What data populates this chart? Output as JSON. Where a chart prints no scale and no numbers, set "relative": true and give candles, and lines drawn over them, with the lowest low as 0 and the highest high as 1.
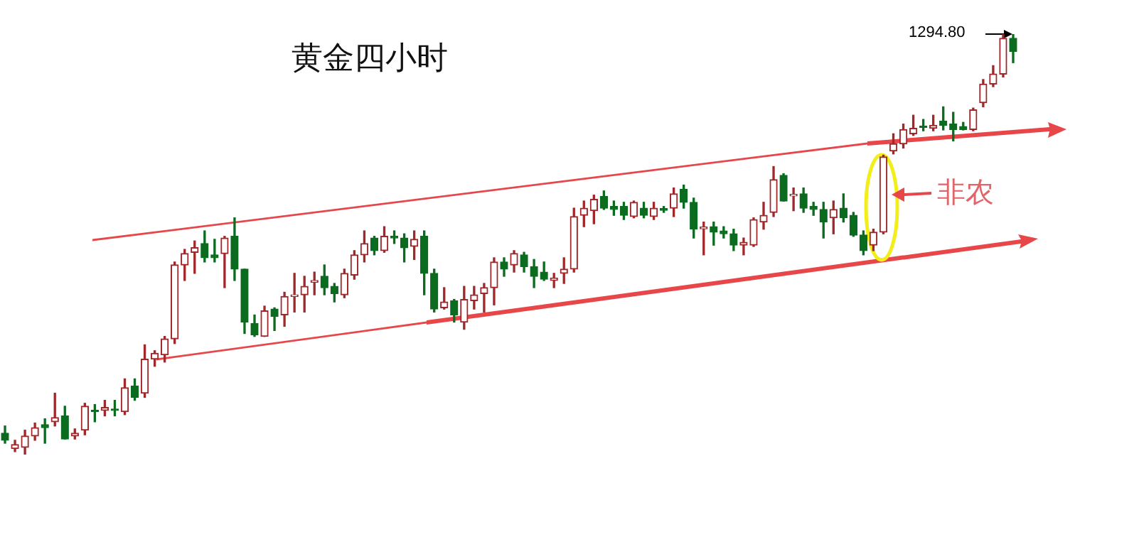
{
  "chart_data": {
    "type": "candlestick",
    "title": "黄金四小时",
    "relative": true,
    "categories": [
      null,
      null,
      null,
      null,
      null,
      null,
      null,
      null,
      null,
      null,
      null,
      null,
      null,
      null,
      null,
      null,
      null,
      null,
      null,
      null,
      null,
      null,
      null,
      null,
      null,
      null,
      null,
      null,
      null,
      null,
      null,
      null,
      null,
      null,
      null,
      null,
      null,
      null,
      null,
      null,
      null,
      null,
      null,
      null,
      null,
      null,
      null,
      null,
      null,
      null,
      null,
      null,
      null,
      null,
      null,
      null,
      null,
      null,
      null,
      null,
      null,
      null,
      null,
      null,
      null,
      null,
      null,
      null,
      null,
      null,
      null,
      null,
      null,
      null,
      null,
      null,
      null,
      null,
      null,
      null,
      null,
      null,
      null,
      null,
      null,
      null,
      null,
      null,
      null,
      null,
      null,
      null,
      null,
      null,
      null,
      null,
      null,
      null,
      null,
      null,
      null,
      null
    ],
    "ohlc": [
      [
        0.051,
        0.068,
        0.027,
        0.034
      ],
      [
        0.014,
        0.034,
        0.007,
        0.024
      ],
      [
        0.017,
        0.058,
        0,
        0.044
      ],
      [
        0.044,
        0.075,
        0.034,
        0.064
      ],
      [
        0.071,
        0.085,
        0.027,
        0.064
      ],
      [
        0.078,
        0.146,
        0.068,
        0.088
      ],
      [
        0.092,
        0.115,
        0.037,
        0.037
      ],
      [
        0.044,
        0.061,
        0.037,
        0.051
      ],
      [
        0.058,
        0.122,
        0.047,
        0.115
      ],
      [
        0.105,
        0.119,
        0.078,
        0.102
      ],
      [
        0.105,
        0.129,
        0.092,
        0.112
      ],
      [
        0.108,
        0.129,
        0.092,
        0.105
      ],
      [
        0.102,
        0.18,
        0.095,
        0.159
      ],
      [
        0.163,
        0.18,
        0.129,
        0.136
      ],
      [
        0.146,
        0.261,
        0.136,
        0.227
      ],
      [
        0.227,
        0.247,
        0.21,
        0.241
      ],
      [
        0.237,
        0.281,
        0.22,
        0.275
      ],
      [
        0.275,
        0.458,
        0.264,
        0.451
      ],
      [
        0.451,
        0.488,
        0.414,
        0.478
      ],
      [
        0.481,
        0.508,
        0.431,
        0.492
      ],
      [
        0.502,
        0.532,
        0.458,
        0.468
      ],
      [
        0.475,
        0.512,
        0.458,
        0.468
      ],
      [
        0.478,
        0.519,
        0.397,
        0.515
      ],
      [
        0.519,
        0.563,
        0.414,
        0.441
      ],
      [
        0.441,
        0.441,
        0.288,
        0.315
      ],
      [
        0.312,
        0.332,
        0.281,
        0.285
      ],
      [
        0.281,
        0.353,
        0.281,
        0.342
      ],
      [
        0.346,
        0.349,
        0.295,
        0.329
      ],
      [
        0.332,
        0.386,
        0.305,
        0.376
      ],
      [
        0.376,
        0.431,
        0.339,
        0.38
      ],
      [
        0.38,
        0.424,
        0.339,
        0.4
      ],
      [
        0.41,
        0.434,
        0.38,
        0.414
      ],
      [
        0.424,
        0.451,
        0.38,
        0.397
      ],
      [
        0.4,
        0.407,
        0.363,
        0.383
      ],
      [
        0.38,
        0.441,
        0.373,
        0.431
      ],
      [
        0.427,
        0.485,
        0.417,
        0.475
      ],
      [
        0.475,
        0.532,
        0.458,
        0.502
      ],
      [
        0.515,
        0.519,
        0.475,
        0.485
      ],
      [
        0.485,
        0.542,
        0.481,
        0.519
      ],
      [
        0.519,
        0.532,
        0.502,
        0.515
      ],
      [
        0.515,
        0.525,
        0.458,
        0.492
      ],
      [
        0.495,
        0.532,
        0.464,
        0.512
      ],
      [
        0.519,
        0.532,
        0.38,
        0.431
      ],
      [
        0.431,
        0.441,
        0.339,
        0.346
      ],
      [
        0.349,
        0.397,
        0.346,
        0.363
      ],
      [
        0.366,
        0.369,
        0.315,
        0.332
      ],
      [
        0.315,
        0.4,
        0.298,
        0.369
      ],
      [
        0.366,
        0.4,
        0.346,
        0.38
      ],
      [
        0.383,
        0.407,
        0.339,
        0.397
      ],
      [
        0.397,
        0.468,
        0.356,
        0.458
      ],
      [
        0.458,
        0.468,
        0.424,
        0.441
      ],
      [
        0.451,
        0.485,
        0.434,
        0.478
      ],
      [
        0.475,
        0.481,
        0.434,
        0.447
      ],
      [
        0.447,
        0.464,
        0.397,
        0.424
      ],
      [
        0.434,
        0.458,
        0.414,
        0.417
      ],
      [
        0.414,
        0.431,
        0.397,
        0.42
      ],
      [
        0.431,
        0.468,
        0.407,
        0.441
      ],
      [
        0.441,
        0.586,
        0.434,
        0.566
      ],
      [
        0.569,
        0.603,
        0.542,
        0.586
      ],
      [
        0.58,
        0.617,
        0.549,
        0.607
      ],
      [
        0.614,
        0.627,
        0.583,
        0.586
      ],
      [
        0.59,
        0.603,
        0.569,
        0.583
      ],
      [
        0.59,
        0.6,
        0.559,
        0.569
      ],
      [
        0.566,
        0.603,
        0.563,
        0.6
      ],
      [
        0.586,
        0.6,
        0.563,
        0.569
      ],
      [
        0.566,
        0.6,
        0.559,
        0.586
      ],
      [
        0.585,
        0.59,
        0.576,
        0.581
      ],
      [
        0.586,
        0.634,
        0.566,
        0.62
      ],
      [
        0.631,
        0.641,
        0.586,
        0.6
      ],
      [
        0.6,
        0.61,
        0.515,
        0.536
      ],
      [
        0.537,
        0.553,
        0.475,
        0.541
      ],
      [
        0.542,
        0.553,
        0.498,
        0.529
      ],
      [
        0.532,
        0.542,
        0.515,
        0.525
      ],
      [
        0.525,
        0.536,
        0.485,
        0.498
      ],
      [
        0.498,
        0.515,
        0.475,
        0.505
      ],
      [
        0.498,
        0.563,
        0.495,
        0.559
      ],
      [
        0.553,
        0.6,
        0.536,
        0.569
      ],
      [
        0.576,
        0.685,
        0.566,
        0.654
      ],
      [
        0.664,
        0.668,
        0.603,
        0.603
      ],
      [
        0.615,
        0.634,
        0.58,
        0.619
      ],
      [
        0.62,
        0.634,
        0.576,
        0.586
      ],
      [
        0.59,
        0.6,
        0.569,
        0.583
      ],
      [
        0.583,
        0.6,
        0.515,
        0.553
      ],
      [
        0.563,
        0.603,
        0.525,
        0.583
      ],
      [
        0.586,
        0.62,
        0.553,
        0.563
      ],
      [
        0.569,
        0.576,
        0.519,
        0.522
      ],
      [
        0.522,
        0.532,
        0.475,
        0.485
      ],
      [
        0.498,
        0.536,
        0.485,
        0.529
      ],
      [
        0.529,
        0.712,
        0.525,
        0.708
      ],
      [
        0.722,
        0.763,
        0.715,
        0.739
      ],
      [
        0.739,
        0.786,
        0.729,
        0.773
      ],
      [
        0.763,
        0.807,
        0.759,
        0.776
      ],
      [
        0.781,
        0.797,
        0.77,
        0.778
      ],
      [
        0.776,
        0.807,
        0.77,
        0.783
      ],
      [
        0.793,
        0.827,
        0.772,
        0.783
      ],
      [
        0.786,
        0.814,
        0.746,
        0.773
      ],
      [
        0.78,
        0.79,
        0.772,
        0.773
      ],
      [
        0.773,
        0.824,
        0.77,
        0.82
      ],
      [
        0.837,
        0.892,
        0.827,
        0.881
      ],
      [
        0.881,
        0.925,
        0.875,
        0.905
      ],
      [
        0.905,
        1,
        0.898,
        0.99
      ],
      [
        0.99,
        1,
        0.932,
        0.959
      ]
    ],
    "annotations": [
      "非农",
      "1294.80"
    ]
  }
}
